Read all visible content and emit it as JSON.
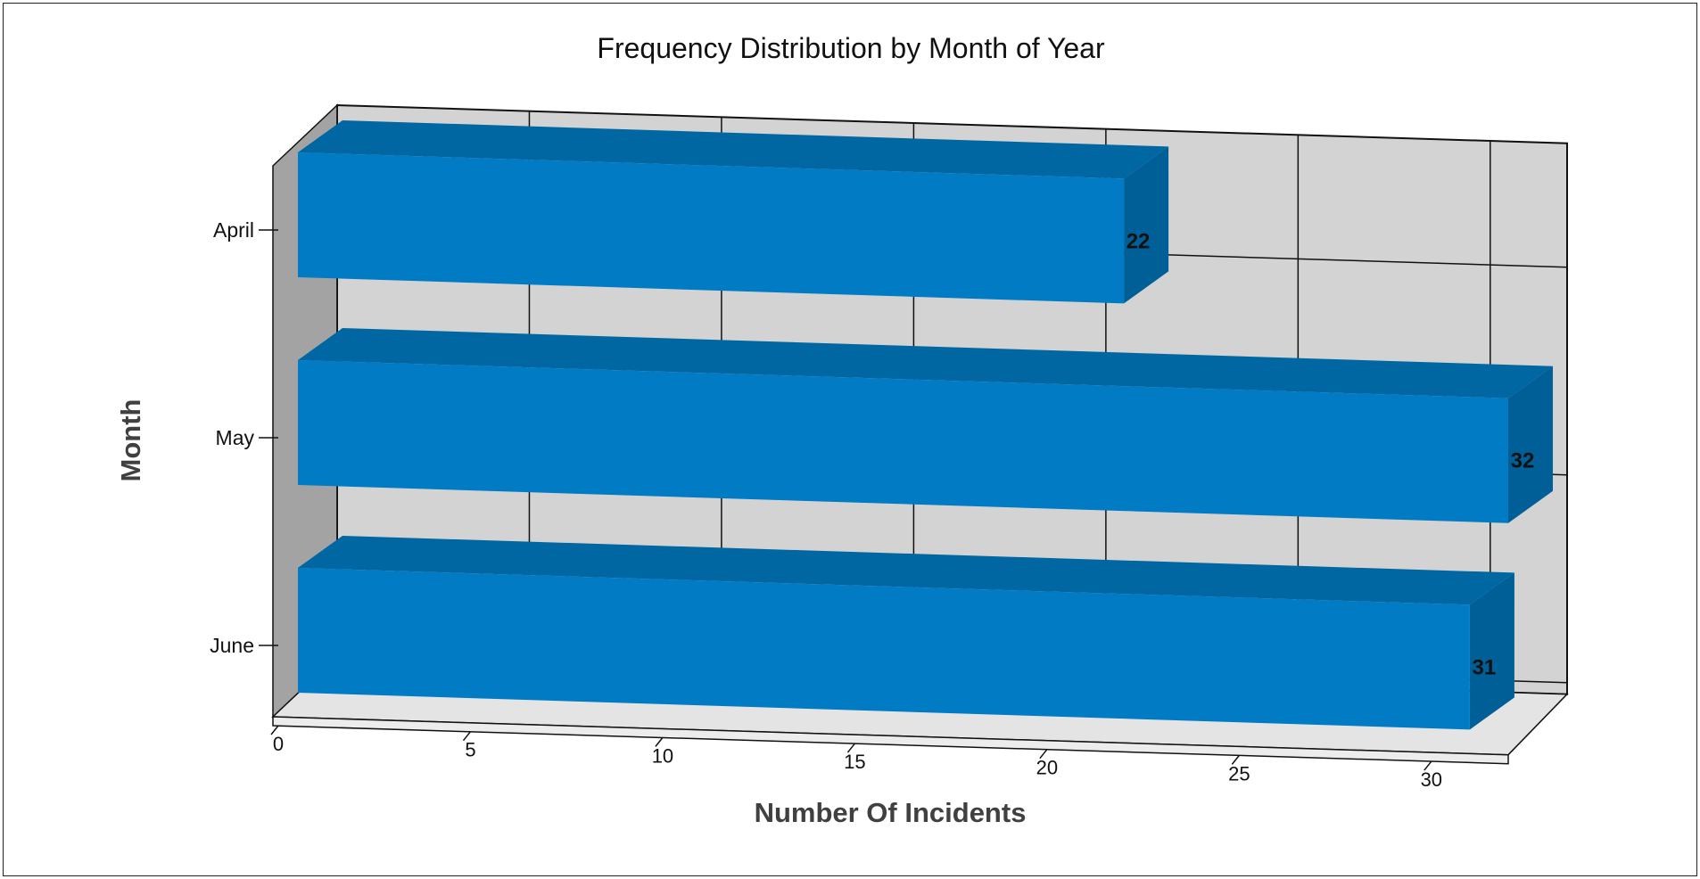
{
  "chart_data": {
    "type": "bar",
    "orientation": "horizontal",
    "three_d": true,
    "title": "Frequency Distribution by Month of Year",
    "xlabel": "Number Of Incidents",
    "ylabel": "Month",
    "categories": [
      "April",
      "May",
      "June"
    ],
    "values": [
      22,
      32,
      31
    ],
    "xlim": [
      0,
      32
    ],
    "x_ticks": [
      0,
      5,
      10,
      15,
      20,
      25,
      30
    ],
    "x_tick_labels": [
      "0",
      "5",
      "10",
      "15",
      "20",
      "25",
      "30"
    ],
    "grid": true,
    "legend": "none",
    "colors": {
      "bar_front": "#007bc4",
      "bar_top": "#0067a3",
      "bar_side": "#005f96",
      "back_wall": "#d3d3d3",
      "side_wall": "#a3a3a3",
      "floor": "#e4e4e4"
    }
  }
}
